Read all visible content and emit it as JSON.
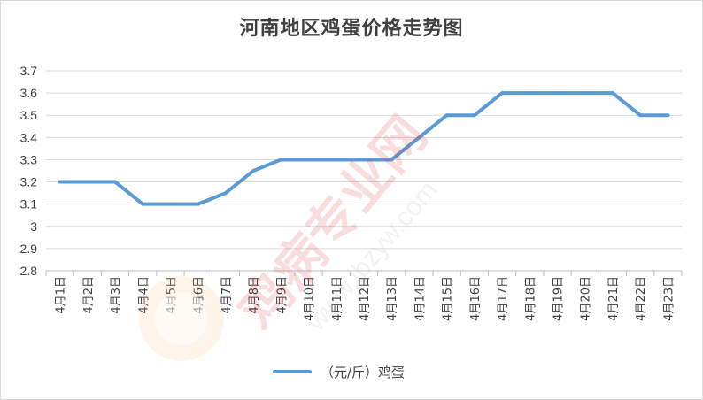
{
  "chart_data": {
    "type": "line",
    "title": "河南地区鸡蛋价格走势图",
    "xlabel": "",
    "ylabel": "",
    "categories": [
      "4月1日",
      "4月2日",
      "4月3日",
      "4月4日",
      "4月5日",
      "4月6日",
      "4月7日",
      "4月8日",
      "4月9日",
      "4月10日",
      "4月11日",
      "4月12日",
      "4月13日",
      "4月14日",
      "4月15日",
      "4月16日",
      "4月17日",
      "4月18日",
      "4月19日",
      "4月20日",
      "4月21日",
      "4月22日",
      "4月23日"
    ],
    "series": [
      {
        "name": "（元/斤）鸡蛋",
        "color": "#5b9bd5",
        "values": [
          3.2,
          3.2,
          3.2,
          3.1,
          3.1,
          3.1,
          3.15,
          3.25,
          3.3,
          3.3,
          3.3,
          3.3,
          3.3,
          3.4,
          3.5,
          3.5,
          3.6,
          3.6,
          3.6,
          3.6,
          3.6,
          3.5,
          3.5
        ]
      }
    ],
    "ylim": [
      2.8,
      3.7
    ],
    "yticks": [
      "2.8",
      "2.9",
      "3",
      "3.1",
      "3.2",
      "3.3",
      "3.4",
      "3.5",
      "3.6",
      "3.7"
    ],
    "grid": true,
    "legend_position": "bottom"
  },
  "watermark": {
    "site": "鸡病专业网",
    "url": "www.jbzyw.com"
  }
}
